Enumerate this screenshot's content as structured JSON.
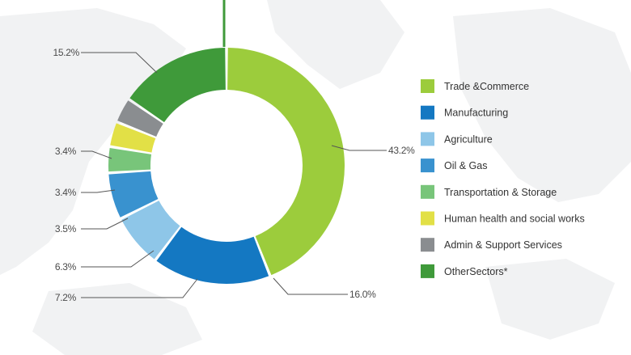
{
  "chart_data": {
    "type": "pie",
    "variant": "donut",
    "legend_position": "right",
    "slices": [
      {
        "name": "Trade &Commerce",
        "value": 43.2,
        "label": "43.2%",
        "color": "#9ccc3c"
      },
      {
        "name": "Manufacturing",
        "value": 16.0,
        "label": "16.0%",
        "color": "#1478c2"
      },
      {
        "name": "Agriculture",
        "value": 7.2,
        "label": "7.2%",
        "color": "#8ec6e8"
      },
      {
        "name": "Oil & Gas",
        "value": 6.3,
        "label": "6.3%",
        "color": "#3992cf"
      },
      {
        "name": "Transportation & Storage",
        "value": 3.5,
        "label": "3.5%",
        "color": "#78c57a"
      },
      {
        "name": "Human health and social works",
        "value": 3.4,
        "label": "3.4%",
        "color": "#e2e046"
      },
      {
        "name": "Admin & Support Services",
        "value": 3.4,
        "label": "3.4%",
        "color": "#8a8d90"
      },
      {
        "name": "OtherSectors*",
        "value": 15.2,
        "label": "15.2%",
        "color": "#3f9a3a"
      }
    ]
  }
}
